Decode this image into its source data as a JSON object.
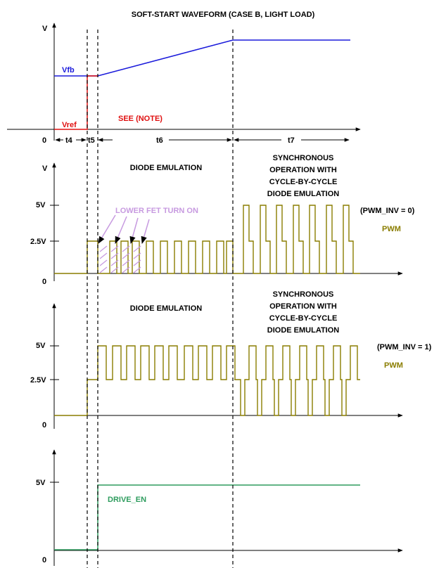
{
  "title": "SOFT-START  WAVEFORM (CASE B, LIGHT LOAD)",
  "colors": {
    "axis": "#000000",
    "vfb": "#1a1adb",
    "vref": "#e01010",
    "pwm": "#8a7d00",
    "drive_en": "#2e9c5e",
    "lower_fet": "#c79ae0"
  },
  "panel1": {
    "y_label": "V",
    "zero_label": "0",
    "vfb_label": "Vfb",
    "vref_label": "Vref",
    "note_label": "SEE (NOTE)",
    "intervals": [
      "t4",
      "t5",
      "t6",
      "t7"
    ]
  },
  "panel2": {
    "y_label": "V",
    "level_5v": "5V",
    "level_2_5v": "2.5V",
    "zero_label": "0",
    "diode_label": "DIODE EMULATION",
    "sync_label": [
      "SYNCHRONOUS",
      "OPERATION WITH",
      "CYCLE-BY-CYCLE",
      "DIODE EMULATION"
    ],
    "lower_fet_label": "LOWER FET TURN ON",
    "inv_label": "(PWM_INV = 0)",
    "signal_label": "PWM"
  },
  "panel3": {
    "level_5v": "5V",
    "level_2_5v": "2.5V",
    "zero_label": "0",
    "diode_label": "DIODE EMULATION",
    "sync_label": [
      "SYNCHRONOUS",
      "OPERATION WITH",
      "CYCLE-BY-CYCLE",
      "DIODE EMULATION"
    ],
    "inv_label": "(PWM_INV = 1)",
    "signal_label": "PWM"
  },
  "panel4": {
    "level_5v": "5V",
    "zero_label": "0",
    "signal_label": "DRIVE_EN"
  }
}
